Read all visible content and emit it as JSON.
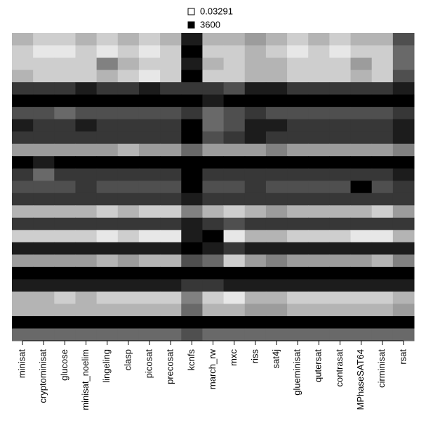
{
  "chart_data": {
    "type": "heatmap",
    "log_scale": true,
    "categories": [
      "minisat",
      "cryptominisat",
      "glucose",
      "minisat_noelim",
      "lingeling",
      "clasp",
      "picosat",
      "precosat",
      "kcnfs",
      "march_rw",
      "mxc",
      "riss",
      "sat4j",
      "glueminisat",
      "qutersat",
      "contrasat",
      "MPhaseSAT64",
      "cirminisat",
      "rsat"
    ],
    "zlim": [
      0.03291,
      3600
    ],
    "values": [
      [
        1,
        0.3,
        0.3,
        1,
        0.3,
        1,
        0.3,
        1,
        1000,
        1,
        1,
        3,
        1,
        0.3,
        1,
        0.3,
        1,
        1,
        100
      ],
      [
        0.3,
        0.1,
        0.1,
        0.3,
        0.1,
        0.3,
        0.1,
        0.3,
        3600,
        0.3,
        0.3,
        1,
        0.3,
        0.1,
        0.3,
        0.1,
        0.3,
        0.3,
        30
      ],
      [
        0.3,
        0.3,
        0.3,
        0.3,
        10,
        1,
        0.3,
        0.3,
        1000,
        1,
        0.3,
        1,
        1,
        0.3,
        0.3,
        0.3,
        3,
        0.3,
        30
      ],
      [
        1,
        0.3,
        0.3,
        0.3,
        1,
        0.3,
        0.1,
        0.3,
        3600,
        0.3,
        0.3,
        1,
        1,
        0.3,
        0.3,
        0.3,
        1,
        0.3,
        100
      ],
      [
        300,
        300,
        300,
        1000,
        300,
        300,
        1000,
        300,
        300,
        300,
        100,
        1000,
        1000,
        300,
        300,
        300,
        300,
        300,
        1000
      ],
      [
        3600,
        3600,
        3600,
        3600,
        3600,
        3600,
        3600,
        3600,
        3600,
        1000,
        3600,
        3600,
        3600,
        3600,
        3600,
        3600,
        3600,
        3600,
        3600
      ],
      [
        100,
        100,
        30,
        100,
        100,
        100,
        100,
        100,
        300,
        30,
        100,
        300,
        100,
        100,
        100,
        100,
        100,
        100,
        300
      ],
      [
        1000,
        300,
        300,
        1000,
        300,
        300,
        300,
        300,
        3600,
        30,
        100,
        1000,
        1000,
        300,
        300,
        300,
        300,
        300,
        1000
      ],
      [
        300,
        300,
        300,
        300,
        300,
        300,
        300,
        300,
        3600,
        100,
        300,
        1000,
        300,
        300,
        300,
        300,
        300,
        300,
        1000
      ],
      [
        3,
        3,
        3,
        3,
        3,
        1,
        3,
        3,
        30,
        3,
        3,
        3,
        10,
        3,
        3,
        3,
        3,
        3,
        10
      ],
      [
        3600,
        1000,
        3600,
        3600,
        3600,
        3600,
        3600,
        3600,
        3600,
        3600,
        3600,
        3600,
        3600,
        3600,
        3600,
        3600,
        3600,
        3600,
        3600
      ],
      [
        300,
        30,
        300,
        300,
        300,
        300,
        300,
        300,
        3600,
        300,
        300,
        300,
        300,
        300,
        300,
        300,
        300,
        300,
        1000
      ],
      [
        100,
        100,
        100,
        300,
        100,
        100,
        100,
        100,
        3600,
        100,
        100,
        300,
        100,
        100,
        100,
        100,
        3600,
        100,
        300
      ],
      [
        300,
        300,
        300,
        300,
        300,
        300,
        300,
        300,
        1000,
        300,
        300,
        300,
        300,
        300,
        300,
        300,
        300,
        300,
        300
      ],
      [
        1,
        1,
        1,
        1,
        0.3,
        1,
        0.3,
        0.3,
        10,
        1,
        0.3,
        1,
        3,
        1,
        1,
        1,
        1,
        0.3,
        3
      ],
      [
        300,
        300,
        300,
        300,
        300,
        300,
        300,
        300,
        1000,
        300,
        100,
        300,
        300,
        300,
        300,
        300,
        300,
        300,
        300
      ],
      [
        0.3,
        0.3,
        0.3,
        0.3,
        0.1,
        0.3,
        0.1,
        0.1,
        1000,
        3600,
        0.1,
        1,
        1,
        0.3,
        0.3,
        0.3,
        0.1,
        0.1,
        1
      ],
      [
        1000,
        1000,
        1000,
        1000,
        1000,
        1000,
        1000,
        1000,
        3600,
        1000,
        300,
        1000,
        1000,
        1000,
        1000,
        1000,
        1000,
        1000,
        1000
      ],
      [
        3,
        3,
        3,
        3,
        1,
        3,
        1,
        1,
        100,
        30,
        0.3,
        3,
        10,
        3,
        3,
        3,
        3,
        1,
        10
      ],
      [
        3600,
        3600,
        3600,
        3600,
        3600,
        3600,
        3600,
        3600,
        3600,
        3600,
        3600,
        3600,
        3600,
        3600,
        3600,
        3600,
        3600,
        3600,
        3600
      ],
      [
        1000,
        1000,
        1000,
        1000,
        1000,
        1000,
        1000,
        1000,
        300,
        300,
        1000,
        1000,
        1000,
        1000,
        1000,
        1000,
        1000,
        1000,
        1000
      ],
      [
        1,
        1,
        0.3,
        1,
        0.3,
        0.3,
        0.3,
        0.3,
        10,
        0.3,
        0.1,
        1,
        1,
        0.3,
        0.3,
        0.3,
        0.3,
        0.3,
        1
      ],
      [
        1,
        1,
        1,
        1,
        1,
        1,
        1,
        1,
        30,
        1,
        1,
        3,
        3,
        1,
        1,
        1,
        1,
        1,
        3
      ],
      [
        3600,
        3600,
        3600,
        3600,
        3600,
        3600,
        3600,
        3600,
        3600,
        3600,
        3600,
        3600,
        3600,
        3600,
        3600,
        3600,
        3600,
        3600,
        3600
      ],
      [
        30,
        30,
        30,
        30,
        30,
        30,
        30,
        30,
        100,
        30,
        30,
        30,
        30,
        30,
        30,
        30,
        30,
        30,
        30
      ]
    ]
  }
}
